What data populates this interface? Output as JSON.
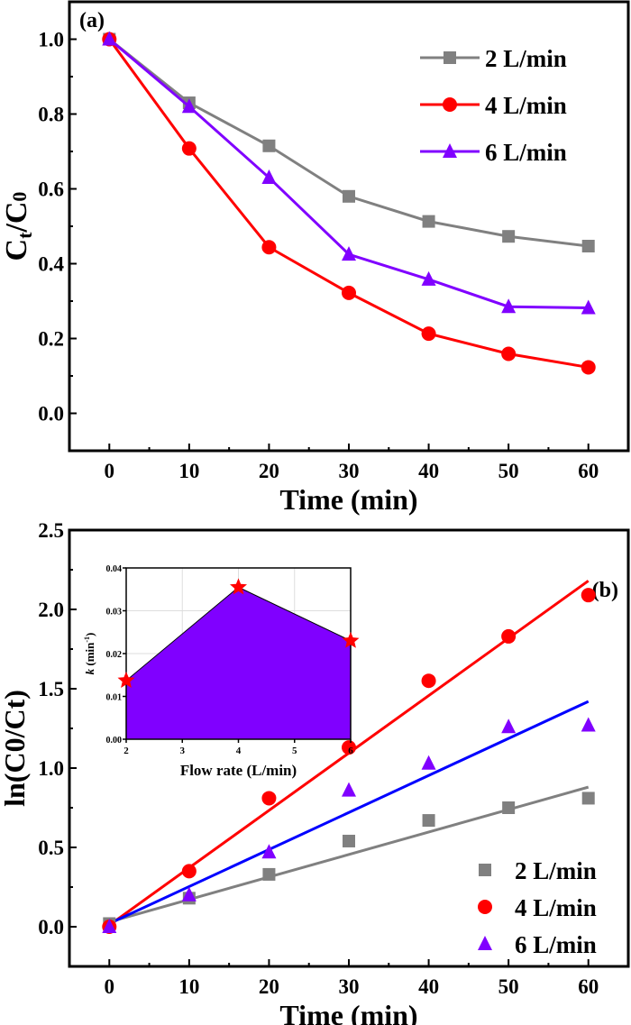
{
  "chart_data": [
    {
      "type": "line",
      "panel_label": "(a)",
      "xlabel": "Time (min)",
      "ylabel_parts": [
        "C",
        "t",
        "/C",
        "0"
      ],
      "xlim": [
        -5,
        65
      ],
      "ylim": [
        -0.1,
        1.1
      ],
      "xticks": [
        0,
        10,
        20,
        30,
        40,
        50,
        60
      ],
      "yticks": [
        "0.0",
        "0.2",
        "0.4",
        "0.6",
        "0.8",
        "1.0"
      ],
      "grid": false,
      "legend_position": "top-right",
      "x": [
        0,
        10,
        20,
        30,
        40,
        50,
        60
      ],
      "series": [
        {
          "name": "2 L/min",
          "color": "#808080",
          "marker": "square",
          "values": [
            1.0,
            0.83,
            0.715,
            0.58,
            0.513,
            0.473,
            0.447
          ]
        },
        {
          "name": "4 L/min",
          "color": "#ff0000",
          "marker": "circle",
          "values": [
            1.0,
            0.708,
            0.444,
            0.322,
            0.213,
            0.159,
            0.123
          ]
        },
        {
          "name": "6 L/min",
          "color": "#8000ff",
          "marker": "triangle",
          "values": [
            1.0,
            0.82,
            0.63,
            0.425,
            0.358,
            0.285,
            0.282
          ]
        }
      ]
    },
    {
      "type": "scatter",
      "panel_label": "(b)",
      "xlabel": "Time (min)",
      "ylabel": "ln(C0/Ct)",
      "xlim": [
        -5,
        65
      ],
      "ylim": [
        -0.25,
        2.5
      ],
      "xticks": [
        0,
        10,
        20,
        30,
        40,
        50,
        60
      ],
      "yticks": [
        "0.0",
        "0.5",
        "1.0",
        "1.5",
        "2.0",
        "2.5"
      ],
      "grid": false,
      "legend_position": "bottom-right",
      "x": [
        0,
        10,
        20,
        30,
        40,
        50,
        60
      ],
      "series": [
        {
          "name": "2 L/min",
          "color": "#808080",
          "marker": "square",
          "values": [
            0.02,
            0.18,
            0.33,
            0.54,
            0.67,
            0.75,
            0.81
          ],
          "fit": {
            "color": "#808080",
            "y_at_0": 0.03,
            "y_at_60": 0.88
          }
        },
        {
          "name": "4 L/min",
          "color": "#ff0000",
          "marker": "circle",
          "values": [
            0.0,
            0.35,
            0.81,
            1.13,
            1.55,
            1.83,
            2.09
          ],
          "fit": {
            "color": "#ff0000",
            "y_at_0": 0.01,
            "y_at_60": 2.18
          }
        },
        {
          "name": "6 L/min",
          "color": "#8000ff",
          "marker": "triangle",
          "values": [
            0.0,
            0.2,
            0.47,
            0.86,
            1.03,
            1.26,
            1.27
          ],
          "fit": {
            "color": "#0000ff",
            "y_at_0": 0.02,
            "y_at_60": 1.42
          }
        }
      ]
    },
    {
      "type": "area",
      "role": "inset",
      "xlabel": "Flow rate (L/min)",
      "ylabel_parts": [
        "k",
        " (min",
        "-1",
        ")"
      ],
      "xlim": [
        2,
        6
      ],
      "ylim": [
        0,
        0.04
      ],
      "xticks": [
        "2",
        "3",
        "4",
        "5",
        "6"
      ],
      "yticks": [
        "0.00",
        "0.01",
        "0.02",
        "0.03",
        "0.04"
      ],
      "grid": true,
      "fill_color": "#8000ff",
      "marker_color": "#ff0000",
      "marker": "star",
      "x": [
        2,
        4,
        6
      ],
      "values": [
        0.0137,
        0.0355,
        0.023
      ]
    }
  ]
}
